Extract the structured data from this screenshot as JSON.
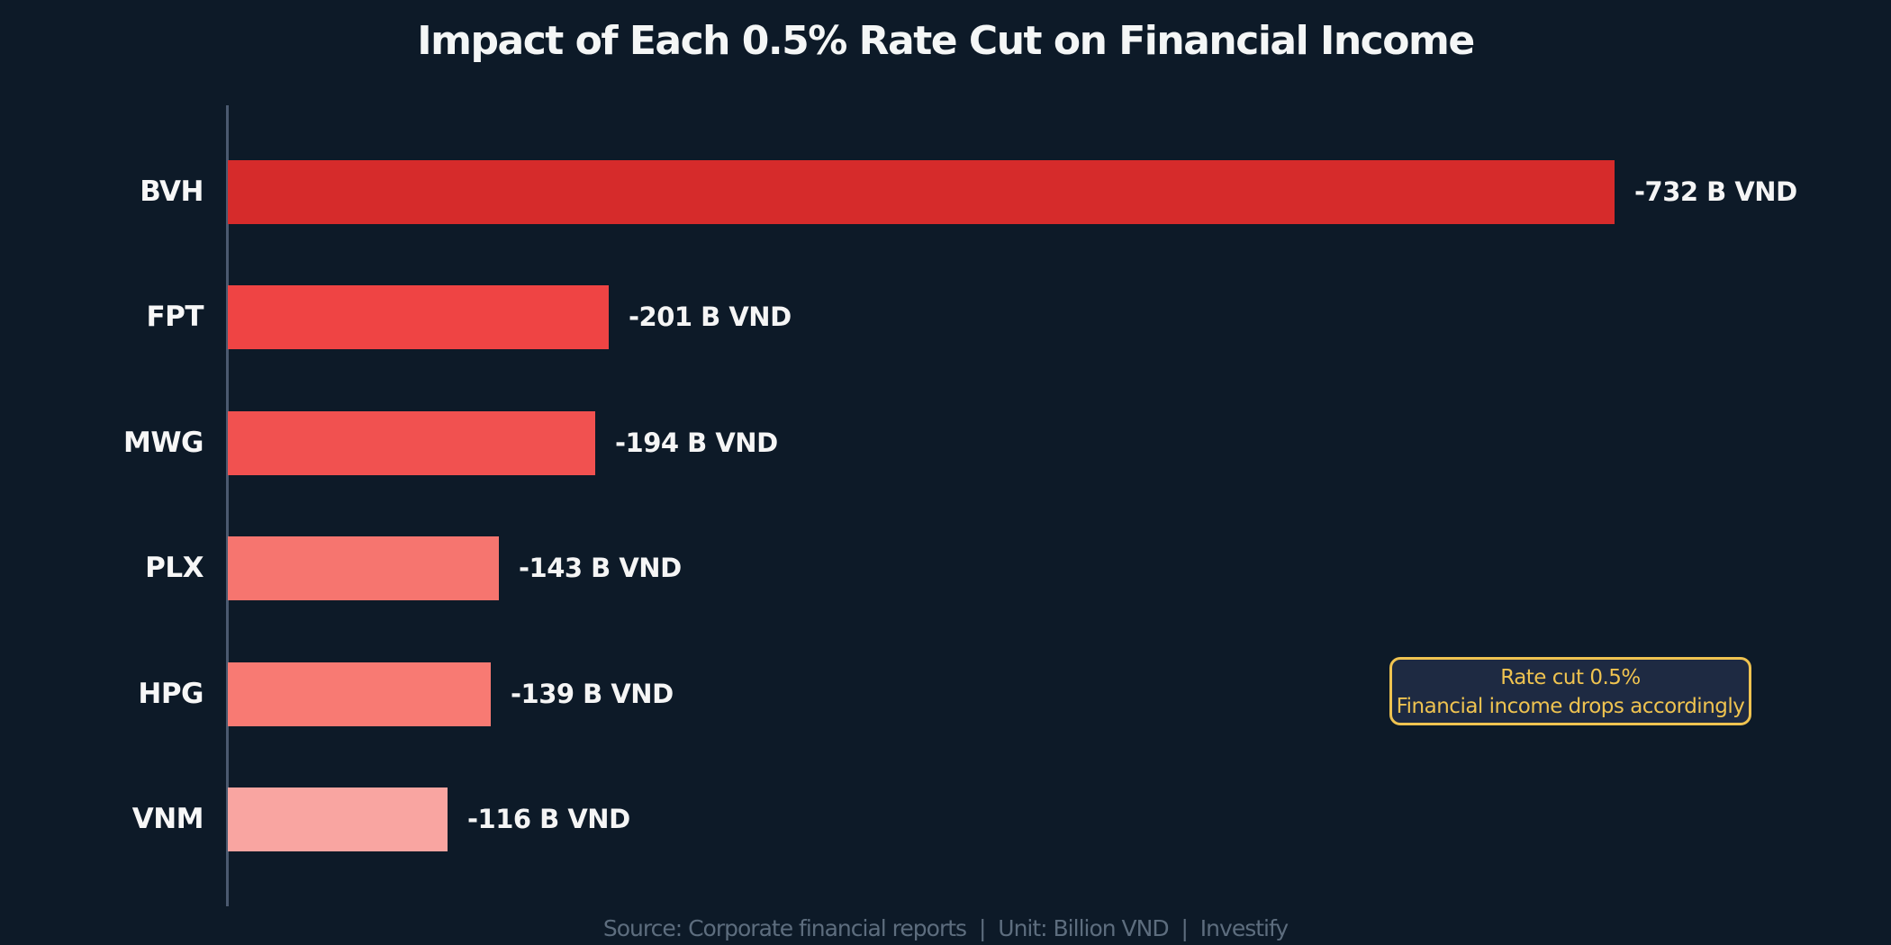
{
  "title": "Impact of Each 0.5% Rate Cut on Financial Income",
  "chart_data": {
    "type": "bar",
    "orientation": "horizontal",
    "title": "Impact of Each 0.5% Rate Cut on Financial Income",
    "categories": [
      "BVH",
      "FPT",
      "MWG",
      "PLX",
      "HPG",
      "VNM"
    ],
    "values": [
      -732,
      -201,
      -194,
      -143,
      -139,
      -116
    ],
    "value_labels": [
      "-732 B VND",
      "-201 B VND",
      "-194 B VND",
      "-143 B VND",
      "-139 B VND",
      "-116 B VND"
    ],
    "bar_colors": [
      "#d62b2b",
      "#ef4444",
      "#f15150",
      "#f6756f",
      "#f87a73",
      "#f9a5a1"
    ],
    "unit": "Billion VND",
    "xlabel": "",
    "ylabel": "",
    "xlim": [
      0,
      780
    ],
    "grid": false,
    "legend": "none"
  },
  "annotation": {
    "line1": "Rate cut 0.5%",
    "line2": "Financial income drops accordingly",
    "border_color": "#efc350",
    "text_color": "#efc350",
    "fill_color": "#1e2a42"
  },
  "footer": {
    "text": "Source: Corporate financial reports  |  Unit: Billion VND  |  Investify"
  },
  "colors": {
    "background": "#0d1a28",
    "axis_line": "#4b5a70",
    "title_text": "#f4f6f6",
    "label_text": "#f7f7f7"
  }
}
